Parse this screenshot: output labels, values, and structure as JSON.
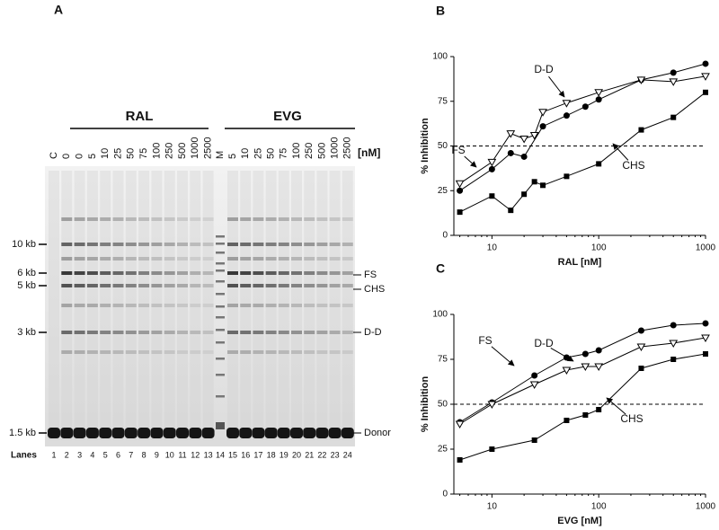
{
  "panel_a": {
    "label": "A",
    "groups": [
      "RAL",
      "EVG"
    ],
    "unit": "[nM]",
    "lane_labels": [
      "C",
      "0",
      "0",
      "5",
      "10",
      "25",
      "50",
      "75",
      "100",
      "250",
      "500",
      "1000",
      "2500",
      "M",
      "5",
      "10",
      "25",
      "50",
      "75",
      "100",
      "250",
      "500",
      "1000",
      "2500"
    ],
    "size_markers": [
      "10 kb",
      "6 kb",
      "5 kb",
      "3 kb",
      "1.5 kb"
    ],
    "products": [
      "FS",
      "CHS",
      "D-D",
      "Donor"
    ],
    "lanes_title": "Lanes",
    "lane_numbers": [
      1,
      2,
      3,
      4,
      5,
      6,
      7,
      8,
      9,
      10,
      11,
      12,
      13,
      14,
      15,
      16,
      17,
      18,
      19,
      20,
      21,
      22,
      23,
      24
    ]
  },
  "chart_data": [
    {
      "type": "line",
      "panel": "B",
      "x_label": "RAL [nM]",
      "y_label": "% Inhibition",
      "xscale": "log",
      "xlim": [
        4.4,
        1000
      ],
      "xticks": [
        10,
        100,
        1000
      ],
      "ylim": [
        0,
        100
      ],
      "yticks": [
        0,
        25,
        50,
        75,
        100
      ],
      "hline": 50,
      "series": [
        {
          "name": "D-D",
          "color": "#000000",
          "marker": "circle",
          "x": [
            5,
            10,
            15,
            20,
            30,
            50,
            75,
            100,
            250,
            500,
            1000
          ],
          "values": [
            25,
            37,
            46,
            44,
            61,
            67,
            72,
            76,
            87,
            91,
            96
          ]
        },
        {
          "name": "FS",
          "color": "#000000",
          "marker": "triangle-down",
          "x": [
            5,
            10,
            15,
            20,
            25,
            30,
            50,
            100,
            250,
            500,
            1000
          ],
          "values": [
            29,
            41,
            57,
            54,
            56,
            69,
            74,
            80,
            87,
            86,
            89
          ]
        },
        {
          "name": "CHS",
          "color": "#000000",
          "marker": "square",
          "x": [
            5,
            10,
            15,
            20,
            25,
            30,
            50,
            100,
            250,
            500,
            1000
          ],
          "values": [
            13,
            22,
            14,
            23,
            30,
            28,
            33,
            40,
            59,
            66,
            80
          ]
        }
      ]
    },
    {
      "type": "line",
      "panel": "C",
      "x_label": "EVG [nM]",
      "y_label": "% Inhibition",
      "xscale": "log",
      "xlim": [
        4.4,
        1000
      ],
      "xticks": [
        10,
        100,
        1000
      ],
      "ylim": [
        0,
        100
      ],
      "yticks": [
        0,
        25,
        50,
        75,
        100
      ],
      "hline": 50,
      "x": [
        5,
        10,
        25,
        50,
        75,
        100,
        250,
        500,
        1000
      ],
      "series": [
        {
          "name": "D-D",
          "color": "#000000",
          "marker": "circle",
          "values": [
            40,
            51,
            66,
            76,
            78,
            80,
            91,
            94,
            95
          ]
        },
        {
          "name": "FS",
          "color": "#000000",
          "marker": "triangle-down",
          "values": [
            39,
            50,
            61,
            69,
            71,
            71,
            82,
            84,
            87
          ]
        },
        {
          "name": "CHS",
          "color": "#000000",
          "marker": "square",
          "values": [
            19,
            25,
            30,
            41,
            44,
            47,
            70,
            75,
            78
          ]
        }
      ]
    }
  ]
}
